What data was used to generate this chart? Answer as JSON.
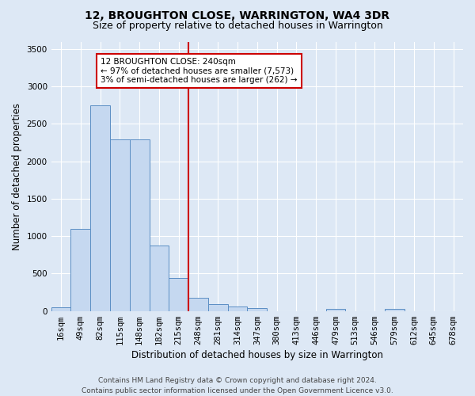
{
  "title": "12, BROUGHTON CLOSE, WARRINGTON, WA4 3DR",
  "subtitle": "Size of property relative to detached houses in Warrington",
  "xlabel": "Distribution of detached houses by size in Warrington",
  "ylabel": "Number of detached properties",
  "bin_labels": [
    "16sqm",
    "49sqm",
    "82sqm",
    "115sqm",
    "148sqm",
    "182sqm",
    "215sqm",
    "248sqm",
    "281sqm",
    "314sqm",
    "347sqm",
    "380sqm",
    "413sqm",
    "446sqm",
    "479sqm",
    "513sqm",
    "546sqm",
    "579sqm",
    "612sqm",
    "645sqm",
    "678sqm"
  ],
  "bar_heights": [
    50,
    1100,
    2750,
    2290,
    2290,
    880,
    440,
    175,
    95,
    55,
    40,
    0,
    0,
    0,
    30,
    0,
    0,
    30,
    0,
    0,
    0
  ],
  "bar_color": "#c5d8f0",
  "bar_edge_color": "#5b8ec4",
  "background_color": "#dde8f5",
  "vline_color": "#cc0000",
  "annotation_text": "12 BROUGHTON CLOSE: 240sqm\n← 97% of detached houses are smaller (7,573)\n3% of semi-detached houses are larger (262) →",
  "annotation_box_color": "#ffffff",
  "annotation_box_edge": "#cc0000",
  "ylim": [
    0,
    3600
  ],
  "yticks": [
    0,
    500,
    1000,
    1500,
    2000,
    2500,
    3000,
    3500
  ],
  "footer": "Contains HM Land Registry data © Crown copyright and database right 2024.\nContains public sector information licensed under the Open Government Licence v3.0.",
  "title_fontsize": 10,
  "subtitle_fontsize": 9,
  "xlabel_fontsize": 8.5,
  "ylabel_fontsize": 8.5,
  "tick_fontsize": 7.5,
  "footer_fontsize": 6.5,
  "vline_bin": 7
}
